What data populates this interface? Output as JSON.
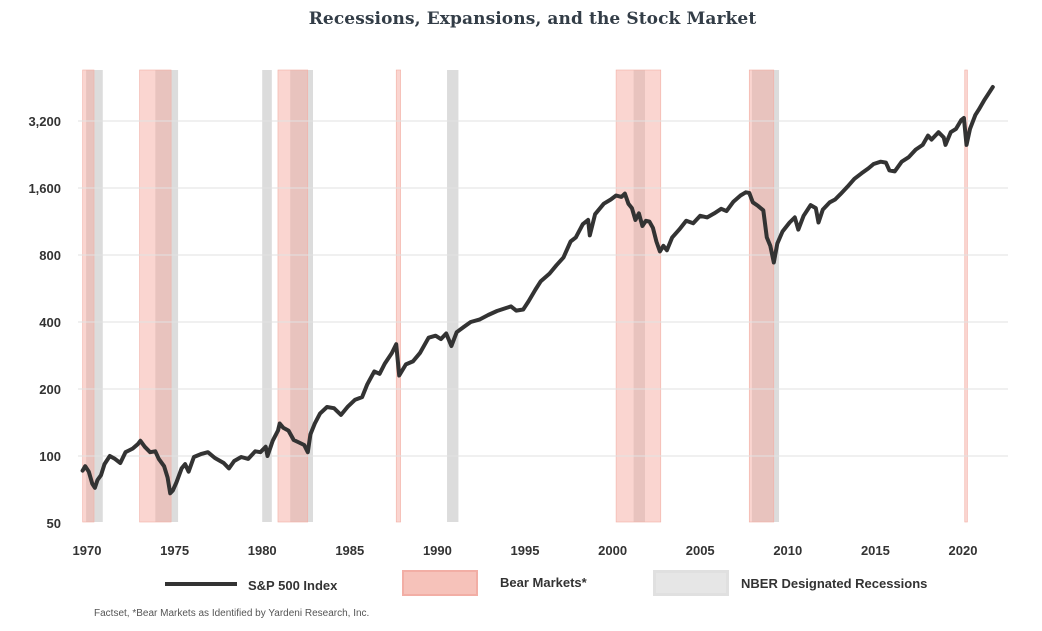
{
  "chart_data": {
    "type": "line",
    "title": "Recessions, Expansions, and the Stock Market",
    "xlabel": "",
    "ylabel": "",
    "y_scale": "log2",
    "ylim": [
      50,
      5000
    ],
    "xlim": [
      1969.7,
      2022.5
    ],
    "yticks": [
      {
        "value": 50,
        "label": "50"
      },
      {
        "value": 100,
        "label": "100"
      },
      {
        "value": 200,
        "label": "200"
      },
      {
        "value": 400,
        "label": "400"
      },
      {
        "value": 800,
        "label": "800"
      },
      {
        "value": 1600,
        "label": "1,600"
      },
      {
        "value": 3200,
        "label": "3,200"
      }
    ],
    "xticks": [
      {
        "value": 1970,
        "label": "1970"
      },
      {
        "value": 1975,
        "label": "1975"
      },
      {
        "value": 1980,
        "label": "1980"
      },
      {
        "value": 1985,
        "label": "1985"
      },
      {
        "value": 1990,
        "label": "1990"
      },
      {
        "value": 1995,
        "label": "1995"
      },
      {
        "value": 2000,
        "label": "2000"
      },
      {
        "value": 2005,
        "label": "2005"
      },
      {
        "value": 2010,
        "label": "2010"
      },
      {
        "value": 2015,
        "label": "2015"
      },
      {
        "value": 2020,
        "label": "2020"
      }
    ],
    "grid": true,
    "series": [
      {
        "name": "S&P 500 Index",
        "color": "#333333",
        "points": [
          [
            1969.75,
            86
          ],
          [
            1969.9,
            90
          ],
          [
            1970.1,
            85
          ],
          [
            1970.3,
            75
          ],
          [
            1970.45,
            72
          ],
          [
            1970.6,
            78
          ],
          [
            1970.8,
            82
          ],
          [
            1971.0,
            92
          ],
          [
            1971.3,
            100
          ],
          [
            1971.6,
            97
          ],
          [
            1971.9,
            93
          ],
          [
            1972.2,
            104
          ],
          [
            1972.6,
            108
          ],
          [
            1972.9,
            113
          ],
          [
            1973.05,
            117
          ],
          [
            1973.3,
            110
          ],
          [
            1973.6,
            104
          ],
          [
            1973.9,
            105
          ],
          [
            1974.1,
            97
          ],
          [
            1974.4,
            90
          ],
          [
            1974.6,
            80
          ],
          [
            1974.75,
            68
          ],
          [
            1974.9,
            70
          ],
          [
            1975.1,
            76
          ],
          [
            1975.4,
            88
          ],
          [
            1975.6,
            92
          ],
          [
            1975.8,
            85
          ],
          [
            1976.1,
            99
          ],
          [
            1976.5,
            102
          ],
          [
            1976.9,
            104
          ],
          [
            1977.3,
            98
          ],
          [
            1977.8,
            93
          ],
          [
            1978.1,
            88
          ],
          [
            1978.4,
            95
          ],
          [
            1978.8,
            99
          ],
          [
            1979.2,
            97
          ],
          [
            1979.6,
            105
          ],
          [
            1979.9,
            104
          ],
          [
            1980.2,
            110
          ],
          [
            1980.3,
            100
          ],
          [
            1980.6,
            117
          ],
          [
            1980.9,
            130
          ],
          [
            1981.0,
            140
          ],
          [
            1981.2,
            134
          ],
          [
            1981.5,
            130
          ],
          [
            1981.8,
            118
          ],
          [
            1982.1,
            115
          ],
          [
            1982.4,
            112
          ],
          [
            1982.6,
            104
          ],
          [
            1982.75,
            125
          ],
          [
            1983.0,
            140
          ],
          [
            1983.3,
            155
          ],
          [
            1983.7,
            166
          ],
          [
            1984.1,
            164
          ],
          [
            1984.5,
            153
          ],
          [
            1984.9,
            167
          ],
          [
            1985.3,
            179
          ],
          [
            1985.7,
            184
          ],
          [
            1986.0,
            210
          ],
          [
            1986.4,
            240
          ],
          [
            1986.7,
            234
          ],
          [
            1987.0,
            260
          ],
          [
            1987.4,
            290
          ],
          [
            1987.65,
            318
          ],
          [
            1987.82,
            230
          ],
          [
            1988.2,
            258
          ],
          [
            1988.6,
            266
          ],
          [
            1989.0,
            290
          ],
          [
            1989.5,
            340
          ],
          [
            1989.9,
            347
          ],
          [
            1990.2,
            335
          ],
          [
            1990.5,
            355
          ],
          [
            1990.8,
            312
          ],
          [
            1991.1,
            360
          ],
          [
            1991.5,
            380
          ],
          [
            1991.9,
            400
          ],
          [
            1992.4,
            410
          ],
          [
            1992.9,
            430
          ],
          [
            1993.4,
            448
          ],
          [
            1993.9,
            462
          ],
          [
            1994.2,
            470
          ],
          [
            1994.5,
            450
          ],
          [
            1994.9,
            455
          ],
          [
            1995.2,
            495
          ],
          [
            1995.6,
            560
          ],
          [
            1995.9,
            610
          ],
          [
            1996.4,
            660
          ],
          [
            1996.8,
            720
          ],
          [
            1997.2,
            780
          ],
          [
            1997.6,
            920
          ],
          [
            1997.9,
            960
          ],
          [
            1998.3,
            1100
          ],
          [
            1998.6,
            1150
          ],
          [
            1998.7,
            980
          ],
          [
            1999.0,
            1220
          ],
          [
            1999.5,
            1360
          ],
          [
            1999.9,
            1420
          ],
          [
            2000.2,
            1480
          ],
          [
            2000.5,
            1460
          ],
          [
            2000.7,
            1510
          ],
          [
            2000.9,
            1360
          ],
          [
            2001.1,
            1300
          ],
          [
            2001.3,
            1150
          ],
          [
            2001.5,
            1230
          ],
          [
            2001.7,
            1080
          ],
          [
            2001.9,
            1140
          ],
          [
            2002.1,
            1130
          ],
          [
            2002.3,
            1060
          ],
          [
            2002.5,
            920
          ],
          [
            2002.7,
            830
          ],
          [
            2002.9,
            880
          ],
          [
            2003.1,
            840
          ],
          [
            2003.4,
            960
          ],
          [
            2003.8,
            1040
          ],
          [
            2004.2,
            1140
          ],
          [
            2004.6,
            1110
          ],
          [
            2005.0,
            1200
          ],
          [
            2005.4,
            1180
          ],
          [
            2005.8,
            1230
          ],
          [
            2006.2,
            1290
          ],
          [
            2006.5,
            1260
          ],
          [
            2006.9,
            1390
          ],
          [
            2007.3,
            1480
          ],
          [
            2007.6,
            1530
          ],
          [
            2007.8,
            1520
          ],
          [
            2008.0,
            1380
          ],
          [
            2008.3,
            1330
          ],
          [
            2008.6,
            1270
          ],
          [
            2008.8,
            960
          ],
          [
            2009.0,
            880
          ],
          [
            2009.2,
            740
          ],
          [
            2009.4,
            900
          ],
          [
            2009.7,
            1020
          ],
          [
            2010.1,
            1120
          ],
          [
            2010.4,
            1180
          ],
          [
            2010.6,
            1040
          ],
          [
            2010.9,
            1200
          ],
          [
            2011.3,
            1340
          ],
          [
            2011.6,
            1300
          ],
          [
            2011.75,
            1120
          ],
          [
            2012.0,
            1280
          ],
          [
            2012.4,
            1380
          ],
          [
            2012.7,
            1420
          ],
          [
            2013.0,
            1500
          ],
          [
            2013.4,
            1620
          ],
          [
            2013.8,
            1760
          ],
          [
            2014.2,
            1860
          ],
          [
            2014.6,
            1960
          ],
          [
            2014.9,
            2050
          ],
          [
            2015.3,
            2100
          ],
          [
            2015.6,
            2080
          ],
          [
            2015.8,
            1920
          ],
          [
            2016.1,
            1900
          ],
          [
            2016.5,
            2100
          ],
          [
            2016.9,
            2200
          ],
          [
            2017.3,
            2380
          ],
          [
            2017.7,
            2500
          ],
          [
            2018.0,
            2750
          ],
          [
            2018.2,
            2640
          ],
          [
            2018.6,
            2850
          ],
          [
            2018.9,
            2700
          ],
          [
            2019.0,
            2500
          ],
          [
            2019.3,
            2850
          ],
          [
            2019.6,
            2950
          ],
          [
            2019.9,
            3230
          ],
          [
            2020.05,
            3300
          ],
          [
            2020.2,
            2500
          ],
          [
            2020.4,
            2950
          ],
          [
            2020.7,
            3400
          ],
          [
            2020.9,
            3600
          ],
          [
            2021.2,
            3950
          ],
          [
            2021.5,
            4300
          ],
          [
            2021.7,
            4550
          ]
        ]
      }
    ],
    "bands": {
      "bear_markets": [
        [
          1969.75,
          1970.4
        ],
        [
          1973.0,
          1974.8
        ],
        [
          1980.9,
          1982.6
        ],
        [
          1987.65,
          1987.9
        ],
        [
          2000.2,
          2002.75
        ],
        [
          2007.8,
          2009.2
        ],
        [
          2020.1,
          2020.25
        ]
      ],
      "nber_recessions": [
        [
          1969.95,
          1970.9
        ],
        [
          1973.9,
          1975.2
        ],
        [
          1980.0,
          1980.55
        ],
        [
          1981.6,
          1982.9
        ],
        [
          1990.55,
          1991.2
        ],
        [
          2001.2,
          2001.85
        ],
        [
          2007.95,
          2009.5
        ]
      ]
    },
    "legend": {
      "position": "bottom",
      "entries": [
        {
          "label": "S&P 500 Index",
          "kind": "line",
          "color": "#333333"
        },
        {
          "label": "Bear Markets*",
          "kind": "band",
          "color": "#f6c2ba"
        },
        {
          "label": "NBER Designated Recessions",
          "kind": "band",
          "color": "#e6e6e6"
        }
      ]
    },
    "colors": {
      "bear": "#f6c4bc",
      "nber": "#dcdcdc",
      "overlap": "#e8c4bf",
      "grid": "#e2e2e2"
    },
    "source_note": "Factset, *Bear Markets as Identified by Yardeni Research, Inc."
  }
}
